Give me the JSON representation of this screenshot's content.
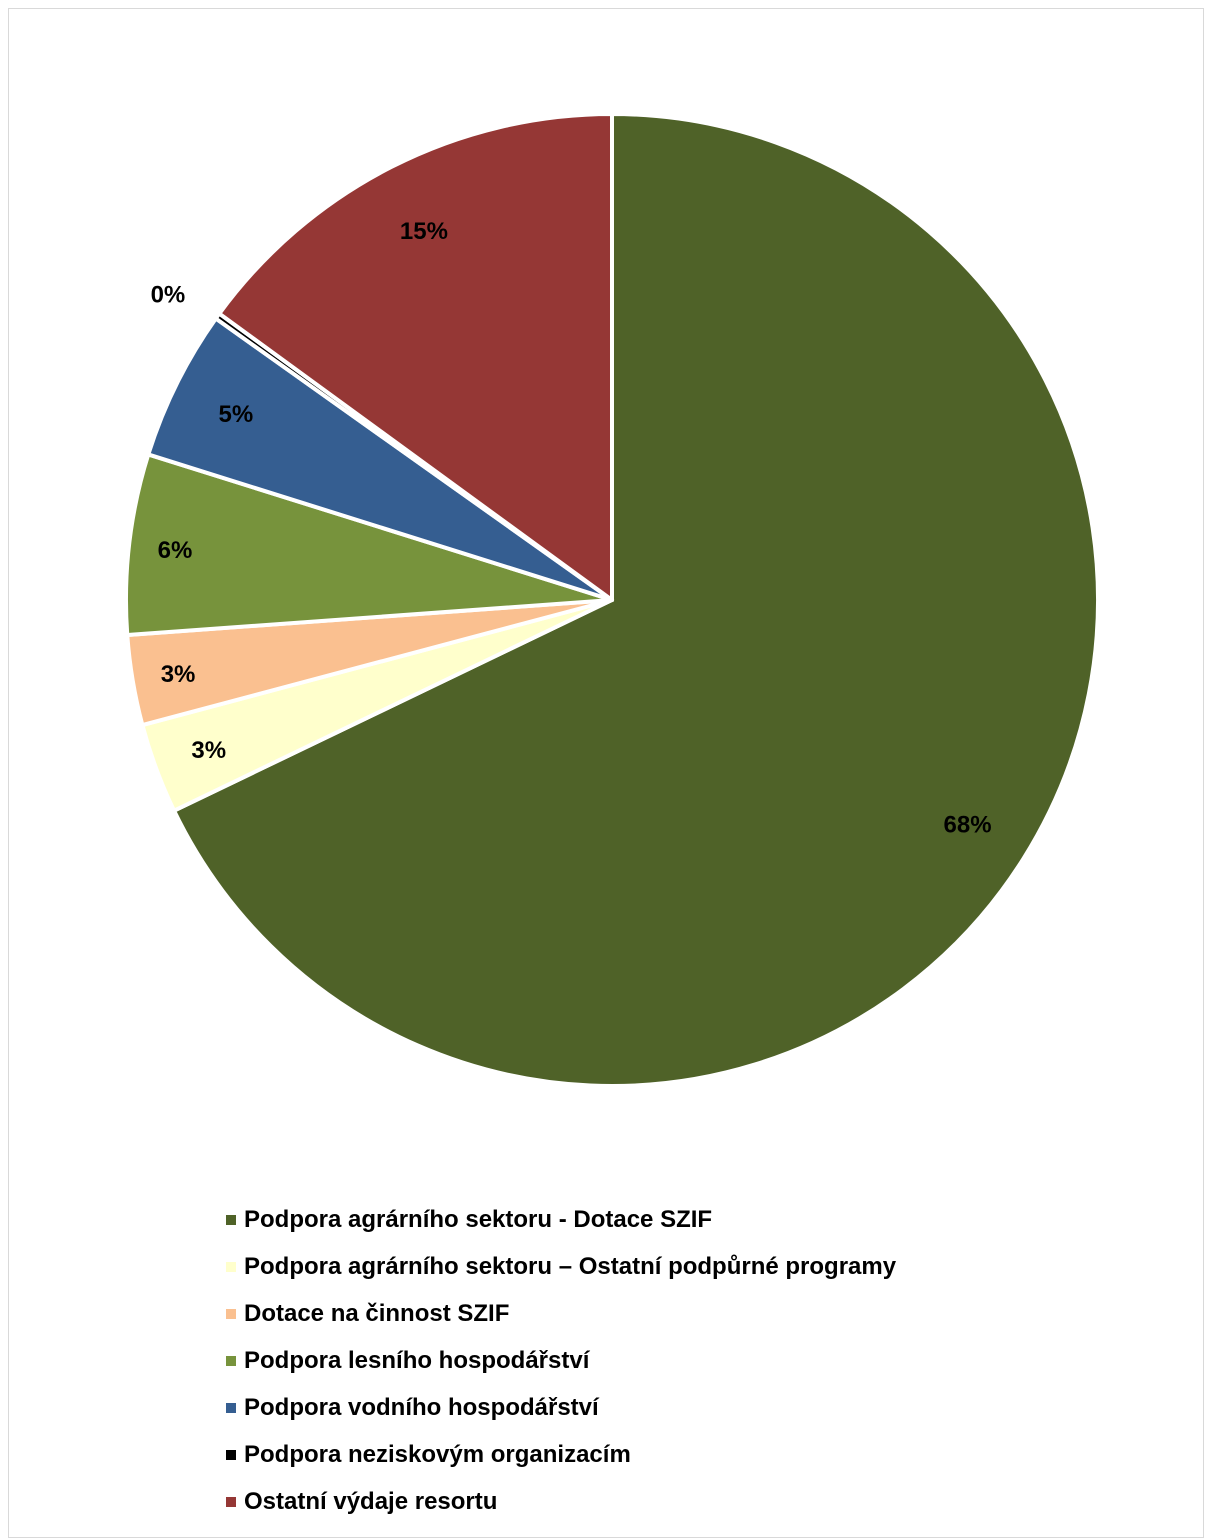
{
  "chart_data": {
    "type": "pie",
    "series": [
      {
        "name": "Podpora agrárního sektoru - Dotace SZIF",
        "value": 68,
        "label": "68%",
        "color": "#4f6228"
      },
      {
        "name": "Podpora agrárního sektoru – Ostatní podpůrné programy",
        "value": 3,
        "label": "3%",
        "color": "#ffffcc"
      },
      {
        "name": "Dotace na činnost SZIF",
        "value": 3,
        "label": "3%",
        "color": "#fac090"
      },
      {
        "name": "Podpora lesního hospodářství",
        "value": 6,
        "label": "6%",
        "color": "#77933c"
      },
      {
        "name": "Podpora vodního hospodářství",
        "value": 5,
        "label": "5%",
        "color": "#355e91"
      },
      {
        "name": "Podpora neziskovým organizacím",
        "value": 0.2,
        "label": "0%",
        "color": "#000000"
      },
      {
        "name": "Ostatní výdaje resortu",
        "value": 15,
        "label": "15%",
        "color": "#953735"
      }
    ],
    "start_angle_deg": 0,
    "direction": "clockwise",
    "legend_position": "bottom-left"
  }
}
